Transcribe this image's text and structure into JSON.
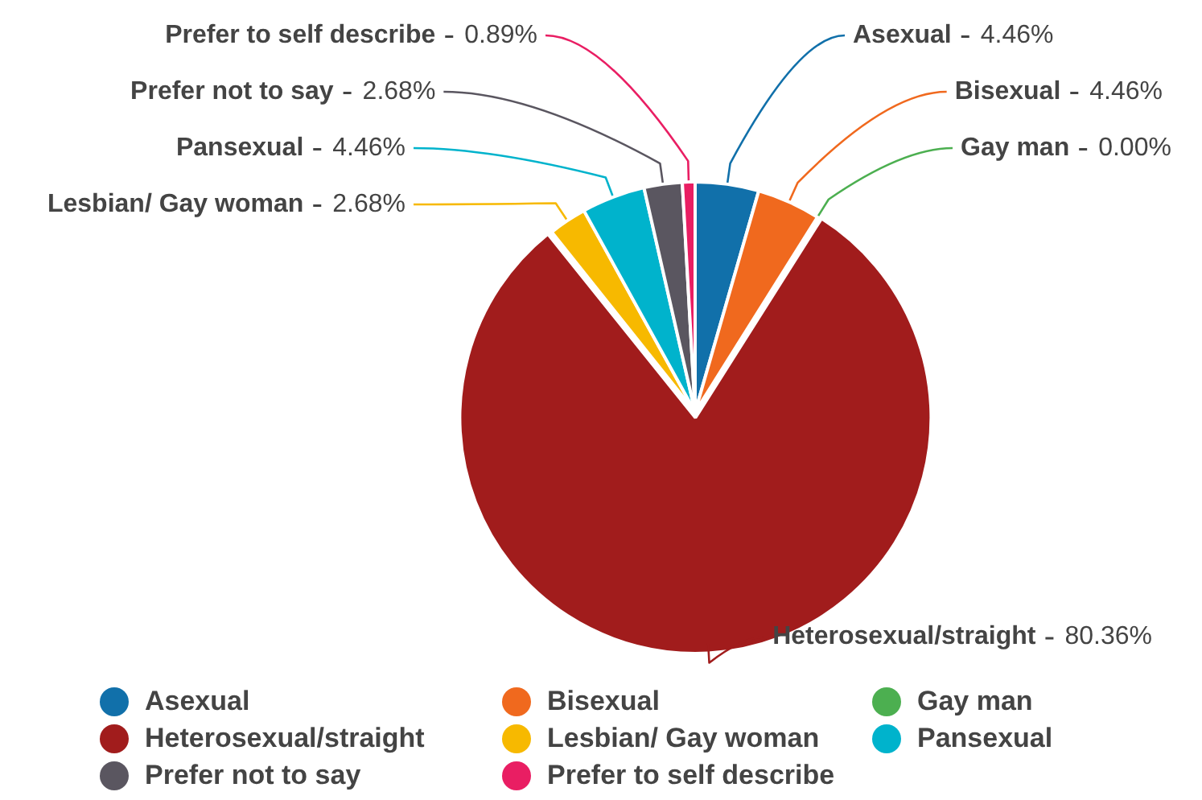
{
  "chart_data": {
    "type": "pie",
    "categories": [
      "Asexual",
      "Bisexual",
      "Gay man",
      "Heterosexual/straight",
      "Lesbian/ Gay woman",
      "Pansexual",
      "Prefer not to say",
      "Prefer to self describe"
    ],
    "values": [
      4.46,
      4.46,
      0,
      80.36,
      2.68,
      4.46,
      2.68,
      0.89
    ],
    "value_labels": [
      "4.46%",
      "4.46%",
      "0.00%",
      "80.36%",
      "2.68%",
      "4.46%",
      "2.68%",
      "0.89%"
    ],
    "colors": [
      "#1170aa",
      "#f0691e",
      "#4caf50",
      "#a11c1c",
      "#f7b900",
      "#00b3cc",
      "#5a5660",
      "#e91e63"
    ],
    "legend": "bottom"
  }
}
